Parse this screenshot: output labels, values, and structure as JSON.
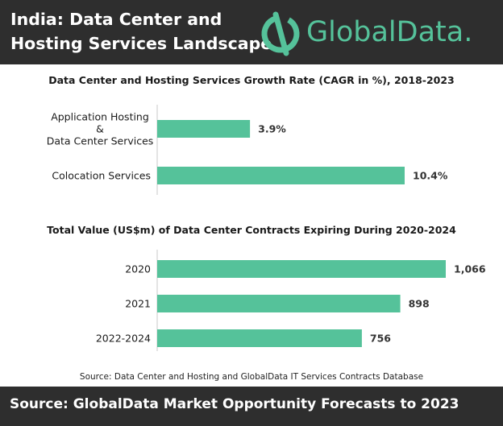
{
  "header": {
    "title": "India: Data Center and Hosting Services Landscape"
  },
  "logo": {
    "text": "GlobalData."
  },
  "colors": {
    "bar": "#55c29a",
    "header_bg": "#2e2e2e",
    "logo": "#55c29a"
  },
  "chart_data": [
    {
      "type": "bar",
      "orientation": "horizontal",
      "title": "Data Center and Hosting Services Growth Rate (CAGR in %), 2018-2023",
      "categories": [
        [
          "Application Hosting",
          "&",
          "Data Center Services"
        ],
        [
          "Colocation Services"
        ]
      ],
      "values": [
        3.9,
        10.4
      ],
      "value_labels": [
        "3.9%",
        "10.4%"
      ],
      "xlim": [
        0,
        10.4
      ]
    },
    {
      "type": "bar",
      "orientation": "horizontal",
      "title": "Total Value (US$m) of Data Center Contracts Expiring During 2020-2024",
      "categories": [
        [
          "2020"
        ],
        [
          "2021"
        ],
        [
          "2022-2024"
        ]
      ],
      "values": [
        1066,
        898,
        756
      ],
      "value_labels": [
        "1,066",
        "898",
        "756"
      ],
      "xlim": [
        0,
        1066
      ]
    }
  ],
  "source_note": "Source: Data Center and Hosting and  GlobalData IT Services Contracts Database",
  "footer": {
    "text": "Source:  GlobalData Market Opportunity Forecasts to 2023"
  }
}
